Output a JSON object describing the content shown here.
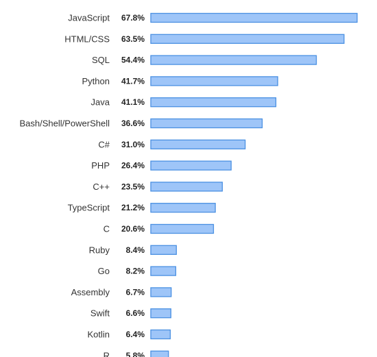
{
  "chart_data": {
    "type": "bar",
    "orientation": "horizontal",
    "categories": [
      "JavaScript",
      "HTML/CSS",
      "SQL",
      "Python",
      "Java",
      "Bash/Shell/PowerShell",
      "C#",
      "PHP",
      "C++",
      "TypeScript",
      "C",
      "Ruby",
      "Go",
      "Assembly",
      "Swift",
      "Kotlin",
      "R"
    ],
    "values": [
      67.8,
      63.5,
      54.4,
      41.7,
      41.1,
      36.6,
      31.0,
      26.4,
      23.5,
      21.2,
      20.6,
      8.4,
      8.2,
      6.7,
      6.6,
      6.4,
      5.8
    ],
    "value_labels": [
      "67.8%",
      "63.5%",
      "54.4%",
      "41.7%",
      "41.1%",
      "36.6%",
      "31.0%",
      "26.4%",
      "23.5%",
      "21.2%",
      "20.6%",
      "8.4%",
      "8.2%",
      "6.7%",
      "6.6%",
      "6.4%",
      "5.8%"
    ],
    "title": "",
    "xlabel": "",
    "ylabel": "",
    "xlim": [
      0,
      67.8
    ],
    "grid": false,
    "colors": {
      "bar_fill": "#9ec5f8",
      "bar_stroke": "#4a90e2"
    }
  }
}
